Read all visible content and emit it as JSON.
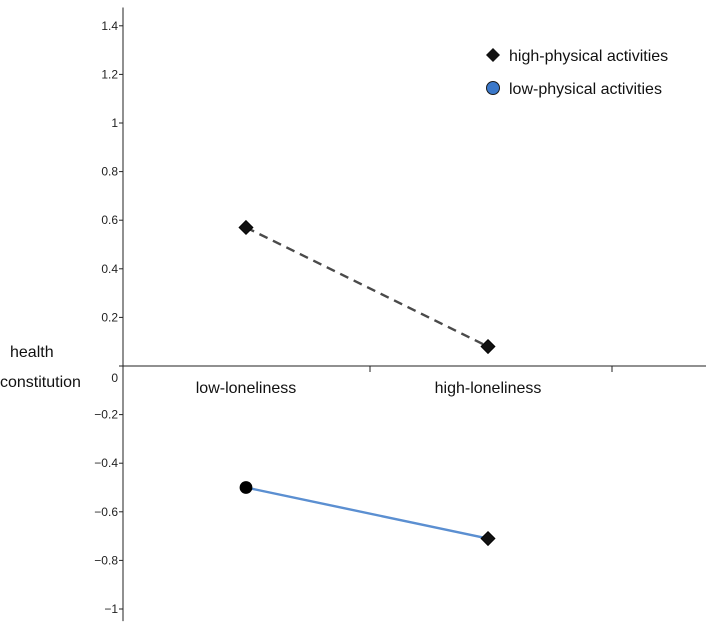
{
  "chart_data": {
    "type": "line",
    "title": "",
    "ylabel": [
      "health",
      "constitution"
    ],
    "xlabel": "",
    "categories": [
      "low-loneliness",
      "high-loneliness"
    ],
    "ylim": [
      -1.05,
      1.5
    ],
    "yticks": [
      1.4,
      1.2,
      1,
      0.8,
      0.6,
      0.4,
      0.2,
      0,
      -0.2,
      -0.4,
      -0.6,
      -0.8,
      -1
    ],
    "ytick_labels": [
      "1.4",
      "1.2",
      "1",
      "0.8",
      "0.6",
      "0.4",
      "0.2",
      "0",
      "−0.2",
      "−0.4",
      "−0.6",
      "−0.8",
      "−1"
    ],
    "legend_position": "top-right",
    "series": [
      {
        "name": "high-physical activities",
        "values": [
          0.57,
          0.08
        ],
        "color": "#4a4a4a",
        "line_style": "dashed",
        "markers": [
          "diamond",
          "diamond"
        ]
      },
      {
        "name": "low-physical activities",
        "values": [
          -0.5,
          -0.71
        ],
        "color": "#5b8fd1",
        "line_style": "solid",
        "markers": [
          "circle",
          "diamond"
        ]
      }
    ],
    "legend": [
      {
        "label": "high-physical activities",
        "marker": "diamond",
        "color": "#111111"
      },
      {
        "label": "low-physical activities",
        "marker": "circle",
        "color": "#3b78c9"
      }
    ]
  }
}
